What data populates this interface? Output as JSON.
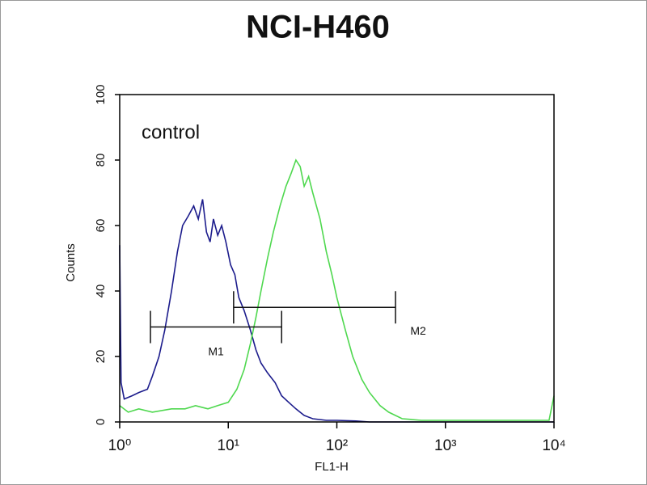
{
  "chart_data": {
    "type": "line",
    "title": "NCI-H460",
    "annotation": "control",
    "xlabel": "FL1-H",
    "ylabel": "Counts",
    "xscale": "log",
    "xlim": [
      1,
      10000
    ],
    "ylim": [
      0,
      100
    ],
    "xticks": [
      {
        "value": 1,
        "label": "10⁰"
      },
      {
        "value": 10,
        "label": "10¹"
      },
      {
        "value": 100,
        "label": "10²"
      },
      {
        "value": 1000,
        "label": "10³"
      },
      {
        "value": 10000,
        "label": "10⁴"
      }
    ],
    "yticks": [
      0,
      20,
      40,
      60,
      80,
      100
    ],
    "series": [
      {
        "color": "#1c1c8c",
        "x": [
          1.0,
          1.03,
          1.1,
          1.3,
          1.5,
          1.8,
          2.0,
          2.3,
          2.6,
          3.0,
          3.4,
          3.8,
          4.3,
          4.8,
          5.3,
          5.8,
          6.3,
          6.8,
          7.3,
          8.0,
          8.7,
          9.5,
          10.5,
          11.5,
          12.5,
          14,
          16,
          18,
          20,
          23,
          27,
          31,
          36,
          42,
          50,
          60,
          80,
          100,
          150,
          200,
          400,
          1000,
          10000
        ],
        "values": [
          54,
          12,
          7,
          8,
          9,
          10,
          14,
          20,
          28,
          40,
          52,
          60,
          63,
          66,
          62,
          68,
          58,
          55,
          62,
          57,
          60,
          55,
          48,
          45,
          38,
          34,
          28,
          22,
          18,
          15,
          12,
          8,
          6,
          4,
          2,
          1,
          0.5,
          0.5,
          0.3,
          0,
          0,
          0,
          0
        ]
      },
      {
        "color": "#4fd84f",
        "x": [
          1.0,
          1.2,
          1.5,
          2.0,
          3.0,
          4.0,
          5.0,
          6.5,
          8.0,
          10,
          12,
          14,
          16,
          18,
          20,
          23,
          26,
          30,
          34,
          38,
          42,
          46,
          50,
          55,
          60,
          70,
          80,
          90,
          100,
          120,
          140,
          170,
          200,
          250,
          300,
          400,
          600,
          1000,
          3000,
          9000,
          10000
        ],
        "values": [
          5,
          3,
          4,
          3,
          4,
          4,
          5,
          4,
          5,
          6,
          10,
          16,
          24,
          32,
          40,
          50,
          58,
          66,
          72,
          76,
          80,
          78,
          72,
          75,
          70,
          62,
          52,
          45,
          38,
          28,
          20,
          13,
          9,
          5,
          3,
          1,
          0.5,
          0.5,
          0.5,
          0.5,
          8
        ]
      }
    ],
    "markers": [
      {
        "name": "M1",
        "x": [
          1.92,
          31
        ],
        "y": 29
      },
      {
        "name": "M2",
        "x": [
          11.2,
          347
        ],
        "y": 35
      }
    ]
  }
}
